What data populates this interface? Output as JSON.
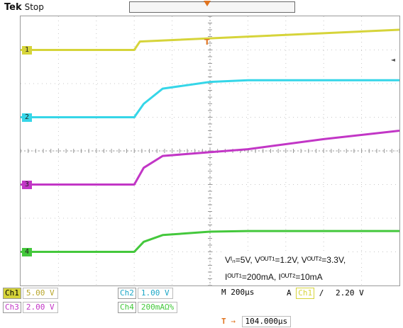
{
  "header": {
    "brand": "Tek",
    "status": "Stop"
  },
  "trigger": {
    "position_marker": "T",
    "level_marker": "◄"
  },
  "channels": [
    {
      "id": "1",
      "label": "Ch1",
      "scale": "5.00 V",
      "color": "#d6d43a"
    },
    {
      "id": "2",
      "label": "Ch2",
      "scale": "1.00 V",
      "color": "#35d6e8"
    },
    {
      "id": "3",
      "label": "Ch3",
      "scale": "2.00 V",
      "color": "#c236c6"
    },
    {
      "id": "4",
      "label": "Ch4",
      "scale": "200mAΩ%",
      "color": "#44c83c"
    }
  ],
  "timebase": {
    "label": "M",
    "value": "200µs"
  },
  "acquire": {
    "label": "A",
    "source": "Ch1",
    "slope": "∕",
    "level": "2.20 V"
  },
  "horizontal": {
    "marker": "T",
    "arrow": "→",
    "position": "104.000µs"
  },
  "annotation": {
    "line1": "Vᴵₙ=5V, Vᴼᵁᵀ¹=1.2V, Vᴼᵁᵀ²=3.3V,",
    "line2": "Iᴼᵁᵀ¹=200mA, Iᴼᵁᵀ²=10mA"
  },
  "chart_data": {
    "type": "line",
    "title": "",
    "xlabel": "",
    "ylabel": "",
    "grid": true,
    "xlim": [
      0,
      10
    ],
    "ylim": [
      0,
      8
    ],
    "series": [
      {
        "name": "1",
        "x": [
          0,
          3.0,
          3.15,
          10
        ],
        "y": [
          7.0,
          7.0,
          7.25,
          7.6
        ]
      },
      {
        "name": "2",
        "x": [
          0,
          3.0,
          3.25,
          3.75,
          5.0,
          6.0,
          10
        ],
        "y": [
          5.0,
          5.0,
          5.4,
          5.85,
          6.05,
          6.1,
          6.1
        ]
      },
      {
        "name": "3",
        "x": [
          0,
          3.0,
          3.25,
          3.75,
          6.0,
          8.0,
          10
        ],
        "y": [
          3.0,
          3.0,
          3.5,
          3.85,
          4.05,
          4.35,
          4.6
        ]
      },
      {
        "name": "4",
        "x": [
          0,
          3.0,
          3.25,
          3.75,
          5.0,
          6.0,
          10
        ],
        "y": [
          1.0,
          1.0,
          1.3,
          1.5,
          1.6,
          1.62,
          1.62
        ]
      }
    ]
  }
}
